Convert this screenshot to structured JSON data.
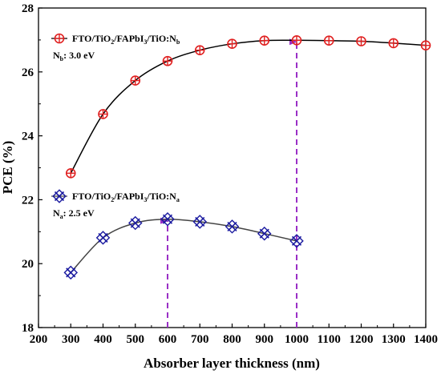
{
  "chart_data": {
    "type": "line",
    "xlabel": "Absorber layer thickness (nm)",
    "ylabel": "PCE (%)",
    "xlim": [
      200,
      1400
    ],
    "ylim": [
      18,
      28
    ],
    "xticks": [
      200,
      300,
      400,
      500,
      600,
      700,
      800,
      900,
      1000,
      1100,
      1200,
      1300,
      1400
    ],
    "yticks": [
      18,
      20,
      22,
      24,
      26,
      28
    ],
    "grid": false,
    "series": [
      {
        "name": "FTO/TiO2/FAPbI3/TiO:Nb",
        "note": "Nb: 3.0 eV",
        "marker": "circle-plus",
        "line_color": "#000000",
        "marker_color": "#e02020",
        "x": [
          300,
          400,
          500,
          600,
          700,
          800,
          900,
          1000,
          1100,
          1200,
          1300,
          1400
        ],
        "y": [
          22.83,
          24.68,
          25.73,
          26.34,
          26.68,
          26.88,
          26.98,
          26.99,
          26.98,
          26.96,
          26.9,
          26.83
        ]
      },
      {
        "name": "FTO/TiO2/FAPbI3/TiO:Na",
        "note": "Na: 2.5 eV",
        "marker": "x-square",
        "line_color": "#444444",
        "marker_color": "#1a1aa0",
        "x": [
          300,
          400,
          500,
          600,
          700,
          800,
          900,
          1000
        ],
        "y": [
          19.72,
          20.81,
          21.27,
          21.39,
          21.31,
          21.16,
          20.94,
          20.71
        ]
      }
    ],
    "annotations": [
      {
        "type": "dashed-arrow",
        "x": 1000,
        "from_y": 18,
        "to_y": 26.99,
        "color": "#9a2fc6"
      },
      {
        "type": "dashed-arrow",
        "x": 600,
        "from_y": 18,
        "to_y": 21.39,
        "color": "#9a2fc6"
      }
    ]
  },
  "legend": {
    "nb": {
      "label_base": "FTO/TiO",
      "label_sub1": "2",
      "label_mid": "/FAPbI",
      "label_sub2": "3",
      "label_end": "/TiO:N",
      "label_sub3": "b",
      "note_main": "N",
      "note_sub": "b",
      "note_rest": ": 3.0 eV"
    },
    "na": {
      "label_base": "FTO/TiO",
      "label_sub1": "2",
      "label_mid": "/FAPbI",
      "label_sub2": "3",
      "label_end": "/TiO:N",
      "label_sub3": "a",
      "note_main": "N",
      "note_sub": "a",
      "note_rest": ": 2.5 eV"
    }
  }
}
